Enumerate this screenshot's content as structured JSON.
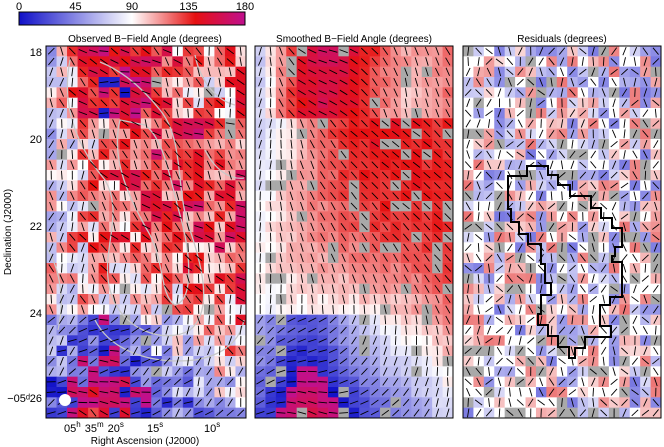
{
  "chart_data": {
    "type": "heatmap",
    "colorbar": {
      "ticks": [
        "0",
        "45",
        "90",
        "135",
        "180"
      ],
      "range": [
        0,
        180
      ],
      "colors": [
        "#1010c8",
        "#ffffff",
        "#e61010",
        "#c0108e"
      ]
    },
    "panels": [
      {
        "title": "Observed B−Field Angle (degrees)",
        "kind": "observed"
      },
      {
        "title": "Smoothed B−Field Angle (degrees)",
        "kind": "smoothed"
      },
      {
        "title": "Residuals (degrees)",
        "kind": "residuals"
      }
    ],
    "ylabel": "Declination (J2000)",
    "xlabel": "Right Ascension (J2000)",
    "yticks": [
      "18",
      "20",
      "22",
      "24",
      "26"
    ],
    "dec_prefix": "−05ᵈ",
    "xticks": [
      {
        "main": "05",
        "sup": "h"
      },
      {
        "main": "35",
        "sup": "m"
      },
      {
        "main": "20",
        "sup": "s"
      },
      {
        "main": "15",
        "sup": "s"
      },
      {
        "main": "10",
        "sup": "s"
      }
    ],
    "masked_color": "#a9a9a9",
    "residual_colors": {
      "negative": "#2a2ad0",
      "zero": "#ffffff",
      "positive": "#e02020"
    }
  }
}
